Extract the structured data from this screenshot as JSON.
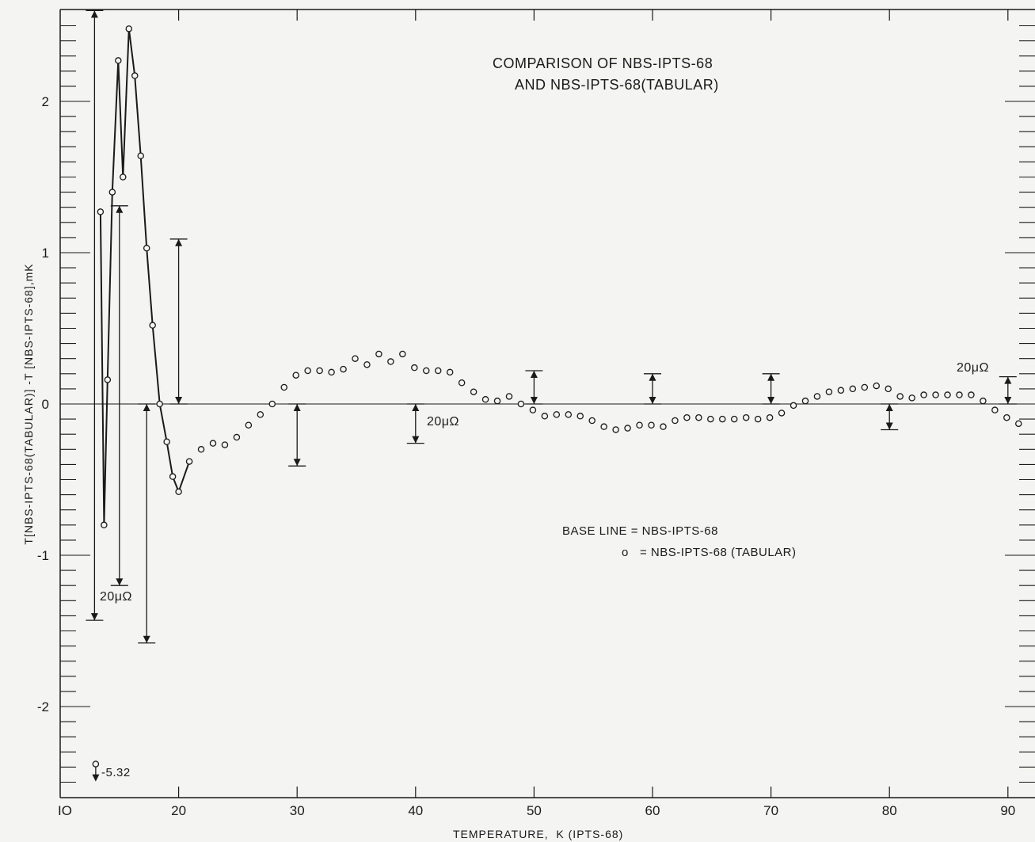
{
  "chart_data": {
    "type": "scatter",
    "title_lines": [
      "COMPARISON OF NBS-IPTS-68",
      "AND NBS-IPTS-68(TABULAR)"
    ],
    "xlabel": "TEMPERATURE,  K (IPTS-68)",
    "ylabel": "T[NBS-IPTS-68(TABULAR)] -T [NBS-IPTS-68],mK",
    "xlim": [
      10,
      92
    ],
    "ylim": [
      -2.6,
      2.6
    ],
    "x_ticks": [
      10,
      20,
      30,
      40,
      50,
      60,
      70,
      80,
      90
    ],
    "x_tick_labels": [
      "IO",
      "20",
      "30",
      "40",
      "50",
      "60",
      "70",
      "80",
      "90"
    ],
    "y_ticks": [
      -2,
      -1,
      0,
      1,
      2
    ],
    "y_tick_labels": [
      "-2",
      "-1",
      "0",
      "1",
      "2"
    ],
    "legend": {
      "base_line_text": "BASE LINE = NBS-IPTS-68",
      "marker_symbol": "o",
      "marker_text": "= NBS-IPTS-68 (TABULAR)"
    },
    "series": [
      {
        "name": "NBS-IPTS-68 (TABULAR)",
        "marker": "open-circle",
        "x": [
          13.0,
          13.4,
          13.7,
          14.0,
          14.4,
          14.9,
          15.3,
          15.8,
          16.3,
          16.8,
          17.3,
          17.8,
          18.4,
          19.0,
          19.5,
          20.0,
          20.9,
          21.9,
          22.9,
          23.9,
          24.9,
          25.9,
          26.9,
          27.9,
          28.9,
          29.9,
          30.9,
          31.9,
          32.9,
          33.9,
          34.9,
          35.9,
          36.9,
          37.9,
          38.9,
          39.9,
          40.9,
          41.9,
          42.9,
          43.9,
          44.9,
          45.9,
          46.9,
          47.9,
          48.9,
          49.9,
          50.9,
          51.9,
          52.9,
          53.9,
          54.9,
          55.9,
          56.9,
          57.9,
          58.9,
          59.9,
          60.9,
          61.9,
          62.9,
          63.9,
          64.9,
          65.9,
          66.9,
          67.9,
          68.9,
          69.9,
          70.9,
          71.9,
          72.9,
          73.9,
          74.9,
          75.9,
          76.9,
          77.9,
          78.9,
          79.9,
          80.9,
          81.9,
          82.9,
          83.9,
          84.9,
          85.9,
          86.9,
          87.9,
          88.9,
          89.9,
          90.9
        ],
        "y": [
          -2.38,
          1.27,
          -0.8,
          0.16,
          1.4,
          2.27,
          1.5,
          2.48,
          2.17,
          1.64,
          1.03,
          0.52,
          0.0,
          -0.25,
          -0.48,
          -0.58,
          -0.38,
          -0.3,
          -0.26,
          -0.27,
          -0.22,
          -0.14,
          -0.07,
          0.0,
          0.11,
          0.19,
          0.22,
          0.22,
          0.21,
          0.23,
          0.3,
          0.26,
          0.33,
          0.28,
          0.33,
          0.24,
          0.22,
          0.22,
          0.21,
          0.14,
          0.08,
          0.03,
          0.02,
          0.05,
          0.0,
          -0.04,
          -0.08,
          -0.07,
          -0.07,
          -0.08,
          -0.11,
          -0.15,
          -0.17,
          -0.16,
          -0.14,
          -0.14,
          -0.15,
          -0.11,
          -0.09,
          -0.09,
          -0.1,
          -0.1,
          -0.1,
          -0.09,
          -0.1,
          -0.09,
          -0.06,
          -0.01,
          0.02,
          0.05,
          0.08,
          0.09,
          0.1,
          0.11,
          0.12,
          0.1,
          0.05,
          0.04,
          0.06,
          0.06,
          0.06,
          0.06,
          0.06,
          0.02,
          -0.04,
          -0.09,
          -0.13
        ],
        "connected_through_x": 20.9
      }
    ],
    "error_bars": [
      {
        "x": 12.9,
        "y1": 2.6,
        "y2": -1.43,
        "label": "20μΩ"
      },
      {
        "x": 15.0,
        "y1": 1.31,
        "y2": -1.2
      },
      {
        "x": 17.3,
        "y1": 0.0,
        "y2": -1.58
      },
      {
        "x": 20.0,
        "y1": 1.09,
        "y2": 0.0
      },
      {
        "x": 30.0,
        "y1": 0.0,
        "y2": -0.41
      },
      {
        "x": 40.0,
        "y1": 0.0,
        "y2": -0.26,
        "label": "20μΩ"
      },
      {
        "x": 50.0,
        "y1": 0.22,
        "y2": 0.0
      },
      {
        "x": 60.0,
        "y1": 0.2,
        "y2": 0.0
      },
      {
        "x": 70.0,
        "y1": 0.2,
        "y2": 0.0
      },
      {
        "x": 80.0,
        "y1": 0.0,
        "y2": -0.17
      },
      {
        "x": 90.0,
        "y1": 0.18,
        "y2": 0.0,
        "label": "20μΩ"
      }
    ],
    "annotations": [
      "-5.32"
    ]
  }
}
